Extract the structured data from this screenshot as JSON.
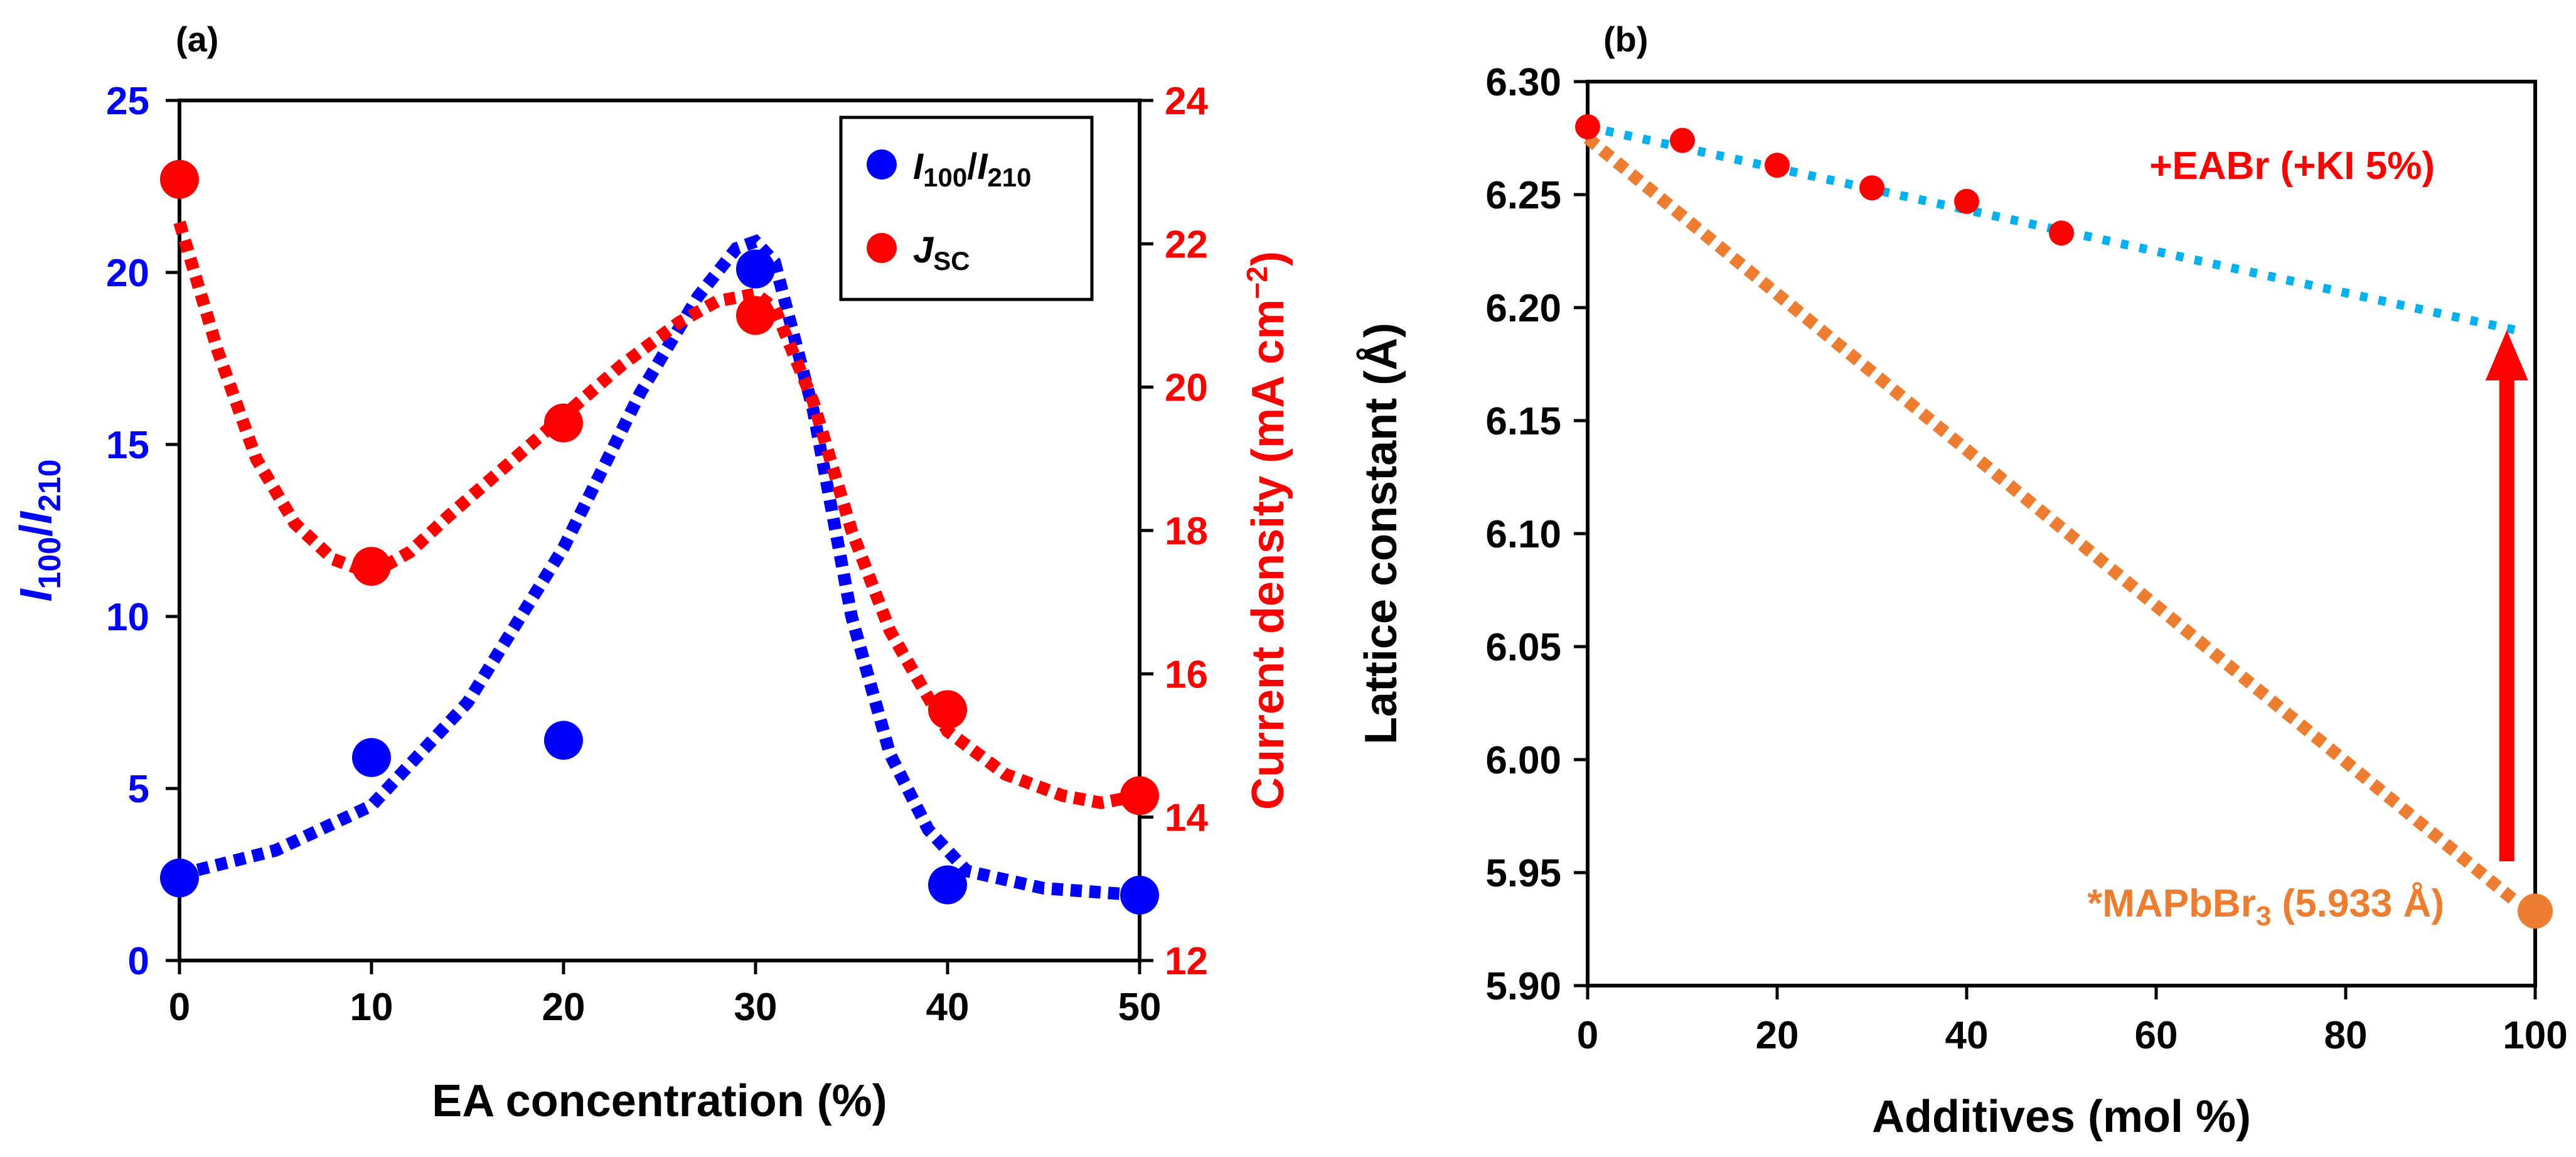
{
  "chart_data": [
    {
      "type": "scatter",
      "panel_label": "(a)",
      "xlabel": "EA concentration (%)",
      "xlim": [
        0,
        50
      ],
      "xticks": [
        0,
        10,
        20,
        30,
        40,
        50
      ],
      "ylabel_left": {
        "main": "I",
        "sub1": "100",
        "slash": "/",
        "main2": "I",
        "sub2": "210"
      },
      "ylim_left": [
        0,
        25
      ],
      "yticks_left": [
        0,
        5,
        10,
        15,
        20,
        25
      ],
      "ylabel_right": {
        "before": "Current density (mA cm",
        "sup": "−2",
        "after": ")"
      },
      "ylim_right": [
        12,
        24
      ],
      "yticks_right": [
        12,
        14,
        16,
        18,
        20,
        22,
        24
      ],
      "colors": {
        "blue": "#0000ff",
        "red": "#ff0000"
      },
      "legend": {
        "position": "top-right",
        "entries": [
          {
            "series": "ratio",
            "main": "I",
            "sub1": "100",
            "slash": "/",
            "main2": "I",
            "sub2": "210"
          },
          {
            "series": "jsc",
            "main": "J",
            "sub1": "SC"
          }
        ]
      },
      "series": [
        {
          "name": "I100/I210",
          "axis": "left",
          "color": "#0000ff",
          "x": [
            0,
            10,
            20,
            30,
            40,
            50
          ],
          "y": [
            2.4,
            5.9,
            6.4,
            20.1,
            2.2,
            1.9
          ],
          "trend_x": [
            0,
            5,
            10,
            15,
            20,
            24,
            27,
            29,
            30,
            31,
            33,
            35,
            37,
            39,
            41,
            45,
            50
          ],
          "trend_y": [
            2.5,
            3.2,
            4.5,
            7.5,
            12.0,
            16.5,
            19.3,
            20.7,
            20.9,
            20.3,
            16.0,
            10.0,
            6.0,
            3.8,
            2.6,
            2.1,
            1.9
          ]
        },
        {
          "name": "JSC",
          "axis": "right",
          "color": "#ff0000",
          "x": [
            0,
            10,
            20,
            30,
            40,
            50
          ],
          "y": [
            22.9,
            17.5,
            19.5,
            21.0,
            15.5,
            14.3
          ],
          "trend_x": [
            0,
            2,
            4,
            6,
            8,
            10,
            12,
            14,
            17,
            20,
            23,
            26,
            28,
            30,
            31,
            33,
            35,
            37,
            40,
            43,
            46,
            48,
            50
          ],
          "trend_y": [
            22.3,
            20.5,
            19.0,
            18.1,
            17.6,
            17.4,
            17.7,
            18.2,
            18.9,
            19.6,
            20.3,
            20.9,
            21.2,
            21.3,
            21.1,
            19.8,
            18.0,
            16.6,
            15.2,
            14.6,
            14.3,
            14.2,
            14.3
          ]
        }
      ]
    },
    {
      "type": "scatter",
      "panel_label": "(b)",
      "xlabel": "Additives (mol %)",
      "xlim": [
        0,
        100
      ],
      "xticks": [
        0,
        20,
        40,
        60,
        80,
        100
      ],
      "ylabel": "Lattice constant (Å)",
      "ylim": [
        5.9,
        6.3
      ],
      "yticks": [
        "5.90",
        "5.95",
        "6.00",
        "6.05",
        "6.10",
        "6.15",
        "6.20",
        "6.25",
        "6.30"
      ],
      "colors": {
        "red": "#ff0000",
        "blue_dotted": "#00b0f0",
        "orange": "#ed7d31",
        "arrow": "#ff0000"
      },
      "series": [
        {
          "name": "+EABr (+KI 5%)",
          "color": "#ff0000",
          "x": [
            0,
            10,
            20,
            30,
            40,
            50
          ],
          "y": [
            6.28,
            6.274,
            6.263,
            6.253,
            6.247,
            6.233
          ]
        },
        {
          "name": "MAPbBr3",
          "color": "#ed7d31",
          "x": [
            100
          ],
          "y": [
            5.933
          ]
        }
      ],
      "trend_lines": [
        {
          "name": "EABr trend",
          "color": "#00b0f0",
          "x": [
            0,
            98
          ],
          "y": [
            6.28,
            6.19
          ]
        },
        {
          "name": "MAPbBr3 trend",
          "color": "#ed7d31",
          "x": [
            0,
            98
          ],
          "y": [
            6.275,
            5.937
          ]
        }
      ],
      "arrow": {
        "x": 97,
        "y_from": 5.955,
        "y_to": 6.19
      },
      "annotations": {
        "eabr_text": "+EABr (+KI 5%)",
        "mapbbr_pre": "*MAPbBr",
        "mapbbr_sub": "3",
        "mapbbr_post": " (5.933 Å)"
      }
    }
  ]
}
